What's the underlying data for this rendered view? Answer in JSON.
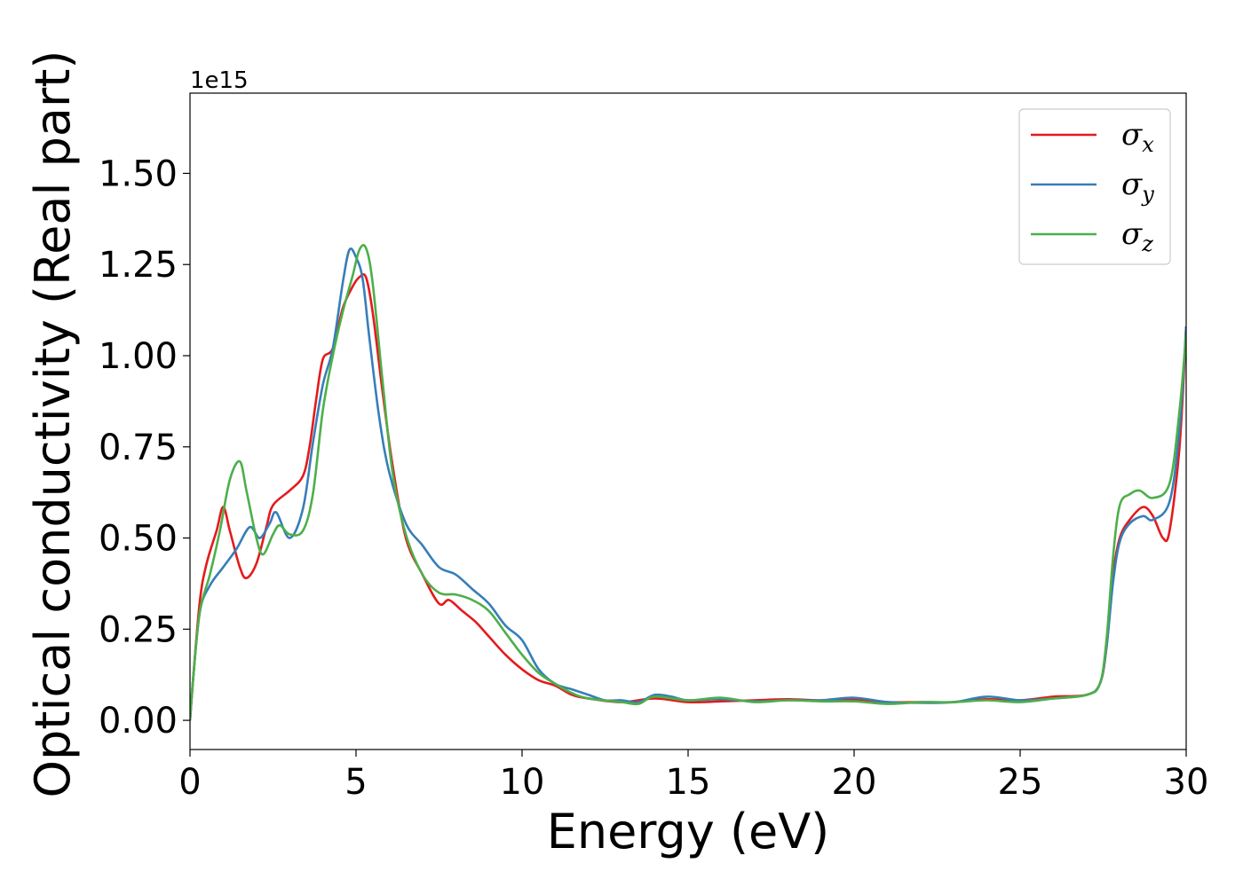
{
  "chart_data": {
    "type": "line",
    "xlabel": "Energy (eV)",
    "ylabel": "Optical conductivity (Real part)",
    "offset_text": "1e15",
    "xlim": [
      0,
      30
    ],
    "ylim": [
      -0.08,
      1.72
    ],
    "x_ticks": [
      0,
      5,
      10,
      15,
      20,
      25,
      30
    ],
    "x_tick_labels": [
      "0",
      "5",
      "10",
      "15",
      "20",
      "25",
      "30"
    ],
    "y_ticks": [
      0.0,
      0.25,
      0.5,
      0.75,
      1.0,
      1.25,
      1.5
    ],
    "y_tick_labels": [
      "0.00",
      "0.25",
      "0.50",
      "0.75",
      "1.00",
      "1.25",
      "1.50"
    ],
    "grid": false,
    "legend_position": "top-right",
    "series": [
      {
        "name": "σx",
        "symbol": "σ",
        "subscript": "x",
        "color": "#e41a1c",
        "points": [
          [
            0,
            0
          ],
          [
            0.1,
            0.12
          ],
          [
            0.3,
            0.33
          ],
          [
            0.5,
            0.43
          ],
          [
            0.8,
            0.52
          ],
          [
            1.0,
            0.585
          ],
          [
            1.2,
            0.52
          ],
          [
            1.5,
            0.42
          ],
          [
            1.7,
            0.39
          ],
          [
            2.0,
            0.43
          ],
          [
            2.3,
            0.53
          ],
          [
            2.5,
            0.59
          ],
          [
            3.0,
            0.63
          ],
          [
            3.4,
            0.67
          ],
          [
            3.6,
            0.75
          ],
          [
            3.8,
            0.88
          ],
          [
            4.0,
            0.99
          ],
          [
            4.3,
            1.02
          ],
          [
            4.6,
            1.13
          ],
          [
            4.9,
            1.19
          ],
          [
            5.1,
            1.215
          ],
          [
            5.3,
            1.215
          ],
          [
            5.5,
            1.12
          ],
          [
            5.8,
            0.9
          ],
          [
            6.1,
            0.7
          ],
          [
            6.5,
            0.5
          ],
          [
            7.0,
            0.4
          ],
          [
            7.5,
            0.32
          ],
          [
            7.8,
            0.33
          ],
          [
            8.2,
            0.3
          ],
          [
            8.6,
            0.27
          ],
          [
            9.0,
            0.23
          ],
          [
            9.5,
            0.18
          ],
          [
            10.0,
            0.14
          ],
          [
            10.5,
            0.11
          ],
          [
            11.0,
            0.095
          ],
          [
            11.5,
            0.07
          ],
          [
            12.0,
            0.06
          ],
          [
            13.0,
            0.05
          ],
          [
            14.0,
            0.06
          ],
          [
            15.0,
            0.05
          ],
          [
            16.0,
            0.052
          ],
          [
            17.0,
            0.055
          ],
          [
            18.0,
            0.058
          ],
          [
            19.0,
            0.055
          ],
          [
            20.0,
            0.058
          ],
          [
            21.0,
            0.05
          ],
          [
            22.0,
            0.05
          ],
          [
            23.0,
            0.05
          ],
          [
            24.0,
            0.058
          ],
          [
            25.0,
            0.055
          ],
          [
            26.0,
            0.065
          ],
          [
            27.0,
            0.07
          ],
          [
            27.4,
            0.1
          ],
          [
            27.6,
            0.2
          ],
          [
            27.8,
            0.4
          ],
          [
            28.0,
            0.5
          ],
          [
            28.3,
            0.55
          ],
          [
            28.7,
            0.585
          ],
          [
            29.0,
            0.56
          ],
          [
            29.3,
            0.5
          ],
          [
            29.5,
            0.52
          ],
          [
            29.8,
            0.75
          ],
          [
            30.0,
            1.08
          ]
        ]
      },
      {
        "name": "σy",
        "symbol": "σ",
        "subscript": "y",
        "color": "#377eb8",
        "points": [
          [
            0,
            0
          ],
          [
            0.1,
            0.12
          ],
          [
            0.3,
            0.3
          ],
          [
            0.6,
            0.37
          ],
          [
            1.0,
            0.42
          ],
          [
            1.4,
            0.47
          ],
          [
            1.8,
            0.53
          ],
          [
            2.1,
            0.5
          ],
          [
            2.4,
            0.54
          ],
          [
            2.6,
            0.57
          ],
          [
            3.0,
            0.5
          ],
          [
            3.4,
            0.58
          ],
          [
            3.7,
            0.76
          ],
          [
            4.0,
            0.92
          ],
          [
            4.3,
            1.02
          ],
          [
            4.6,
            1.2
          ],
          [
            4.8,
            1.29
          ],
          [
            5.0,
            1.27
          ],
          [
            5.2,
            1.21
          ],
          [
            5.4,
            1.05
          ],
          [
            5.7,
            0.83
          ],
          [
            6.0,
            0.68
          ],
          [
            6.5,
            0.54
          ],
          [
            7.0,
            0.48
          ],
          [
            7.5,
            0.42
          ],
          [
            8.0,
            0.4
          ],
          [
            8.5,
            0.36
          ],
          [
            9.0,
            0.32
          ],
          [
            9.5,
            0.26
          ],
          [
            10.0,
            0.22
          ],
          [
            10.5,
            0.14
          ],
          [
            11.0,
            0.1
          ],
          [
            11.5,
            0.085
          ],
          [
            12.0,
            0.07
          ],
          [
            12.5,
            0.055
          ],
          [
            13.0,
            0.055
          ],
          [
            13.5,
            0.05
          ],
          [
            14.0,
            0.07
          ],
          [
            14.5,
            0.065
          ],
          [
            15.0,
            0.055
          ],
          [
            16.0,
            0.058
          ],
          [
            17.0,
            0.052
          ],
          [
            18.0,
            0.055
          ],
          [
            19.0,
            0.055
          ],
          [
            20.0,
            0.062
          ],
          [
            21.0,
            0.05
          ],
          [
            22.0,
            0.048
          ],
          [
            23.0,
            0.05
          ],
          [
            24.0,
            0.065
          ],
          [
            25.0,
            0.055
          ],
          [
            26.0,
            0.06
          ],
          [
            27.0,
            0.07
          ],
          [
            27.4,
            0.1
          ],
          [
            27.6,
            0.2
          ],
          [
            27.8,
            0.38
          ],
          [
            28.0,
            0.49
          ],
          [
            28.3,
            0.54
          ],
          [
            28.7,
            0.56
          ],
          [
            29.0,
            0.55
          ],
          [
            29.5,
            0.6
          ],
          [
            29.8,
            0.8
          ],
          [
            30.0,
            1.08
          ]
        ]
      },
      {
        "name": "σz",
        "symbol": "σ",
        "subscript": "z",
        "color": "#4daf4a",
        "points": [
          [
            0,
            0
          ],
          [
            0.1,
            0.12
          ],
          [
            0.3,
            0.3
          ],
          [
            0.6,
            0.4
          ],
          [
            0.9,
            0.52
          ],
          [
            1.2,
            0.66
          ],
          [
            1.5,
            0.71
          ],
          [
            1.7,
            0.63
          ],
          [
            2.0,
            0.5
          ],
          [
            2.2,
            0.455
          ],
          [
            2.5,
            0.51
          ],
          [
            2.7,
            0.535
          ],
          [
            3.0,
            0.51
          ],
          [
            3.4,
            0.52
          ],
          [
            3.7,
            0.62
          ],
          [
            4.0,
            0.85
          ],
          [
            4.3,
            1.0
          ],
          [
            4.6,
            1.12
          ],
          [
            4.9,
            1.22
          ],
          [
            5.1,
            1.29
          ],
          [
            5.3,
            1.295
          ],
          [
            5.5,
            1.2
          ],
          [
            5.8,
            0.93
          ],
          [
            6.1,
            0.68
          ],
          [
            6.5,
            0.51
          ],
          [
            7.0,
            0.4
          ],
          [
            7.5,
            0.35
          ],
          [
            8.0,
            0.345
          ],
          [
            8.5,
            0.33
          ],
          [
            9.0,
            0.3
          ],
          [
            9.5,
            0.24
          ],
          [
            10.0,
            0.18
          ],
          [
            10.5,
            0.13
          ],
          [
            11.0,
            0.1
          ],
          [
            11.5,
            0.075
          ],
          [
            12.0,
            0.06
          ],
          [
            13.0,
            0.05
          ],
          [
            13.5,
            0.045
          ],
          [
            14.0,
            0.065
          ],
          [
            15.0,
            0.055
          ],
          [
            16.0,
            0.062
          ],
          [
            17.0,
            0.05
          ],
          [
            18.0,
            0.055
          ],
          [
            19.0,
            0.052
          ],
          [
            20.0,
            0.052
          ],
          [
            21.0,
            0.045
          ],
          [
            22.0,
            0.05
          ],
          [
            23.0,
            0.05
          ],
          [
            24.0,
            0.055
          ],
          [
            25.0,
            0.05
          ],
          [
            26.0,
            0.06
          ],
          [
            27.0,
            0.07
          ],
          [
            27.4,
            0.1
          ],
          [
            27.6,
            0.22
          ],
          [
            27.8,
            0.45
          ],
          [
            28.0,
            0.59
          ],
          [
            28.3,
            0.62
          ],
          [
            28.6,
            0.63
          ],
          [
            29.0,
            0.61
          ],
          [
            29.5,
            0.65
          ],
          [
            29.8,
            0.85
          ],
          [
            30.0,
            1.06
          ]
        ]
      }
    ]
  }
}
